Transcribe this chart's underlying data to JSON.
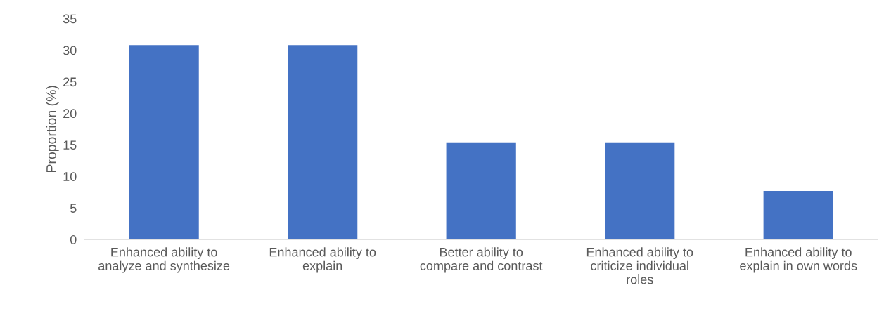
{
  "chart_data": {
    "type": "bar",
    "ylabel": "Proportion (%)",
    "categories": [
      "Enhanced ability to analyze and synthesize",
      "Enhanced ability to explain",
      "Better ability to compare and contrast",
      "Enhanced ability to criticize individual roles",
      "Enhanced ability to explain in own words"
    ],
    "values": [
      30.8,
      30.8,
      15.4,
      15.4,
      7.7
    ],
    "color": "#4472c4",
    "ylim": [
      0,
      35
    ],
    "yticks": [
      0,
      5,
      10,
      15,
      20,
      25,
      30,
      35
    ],
    "grid": false,
    "legend": false
  }
}
